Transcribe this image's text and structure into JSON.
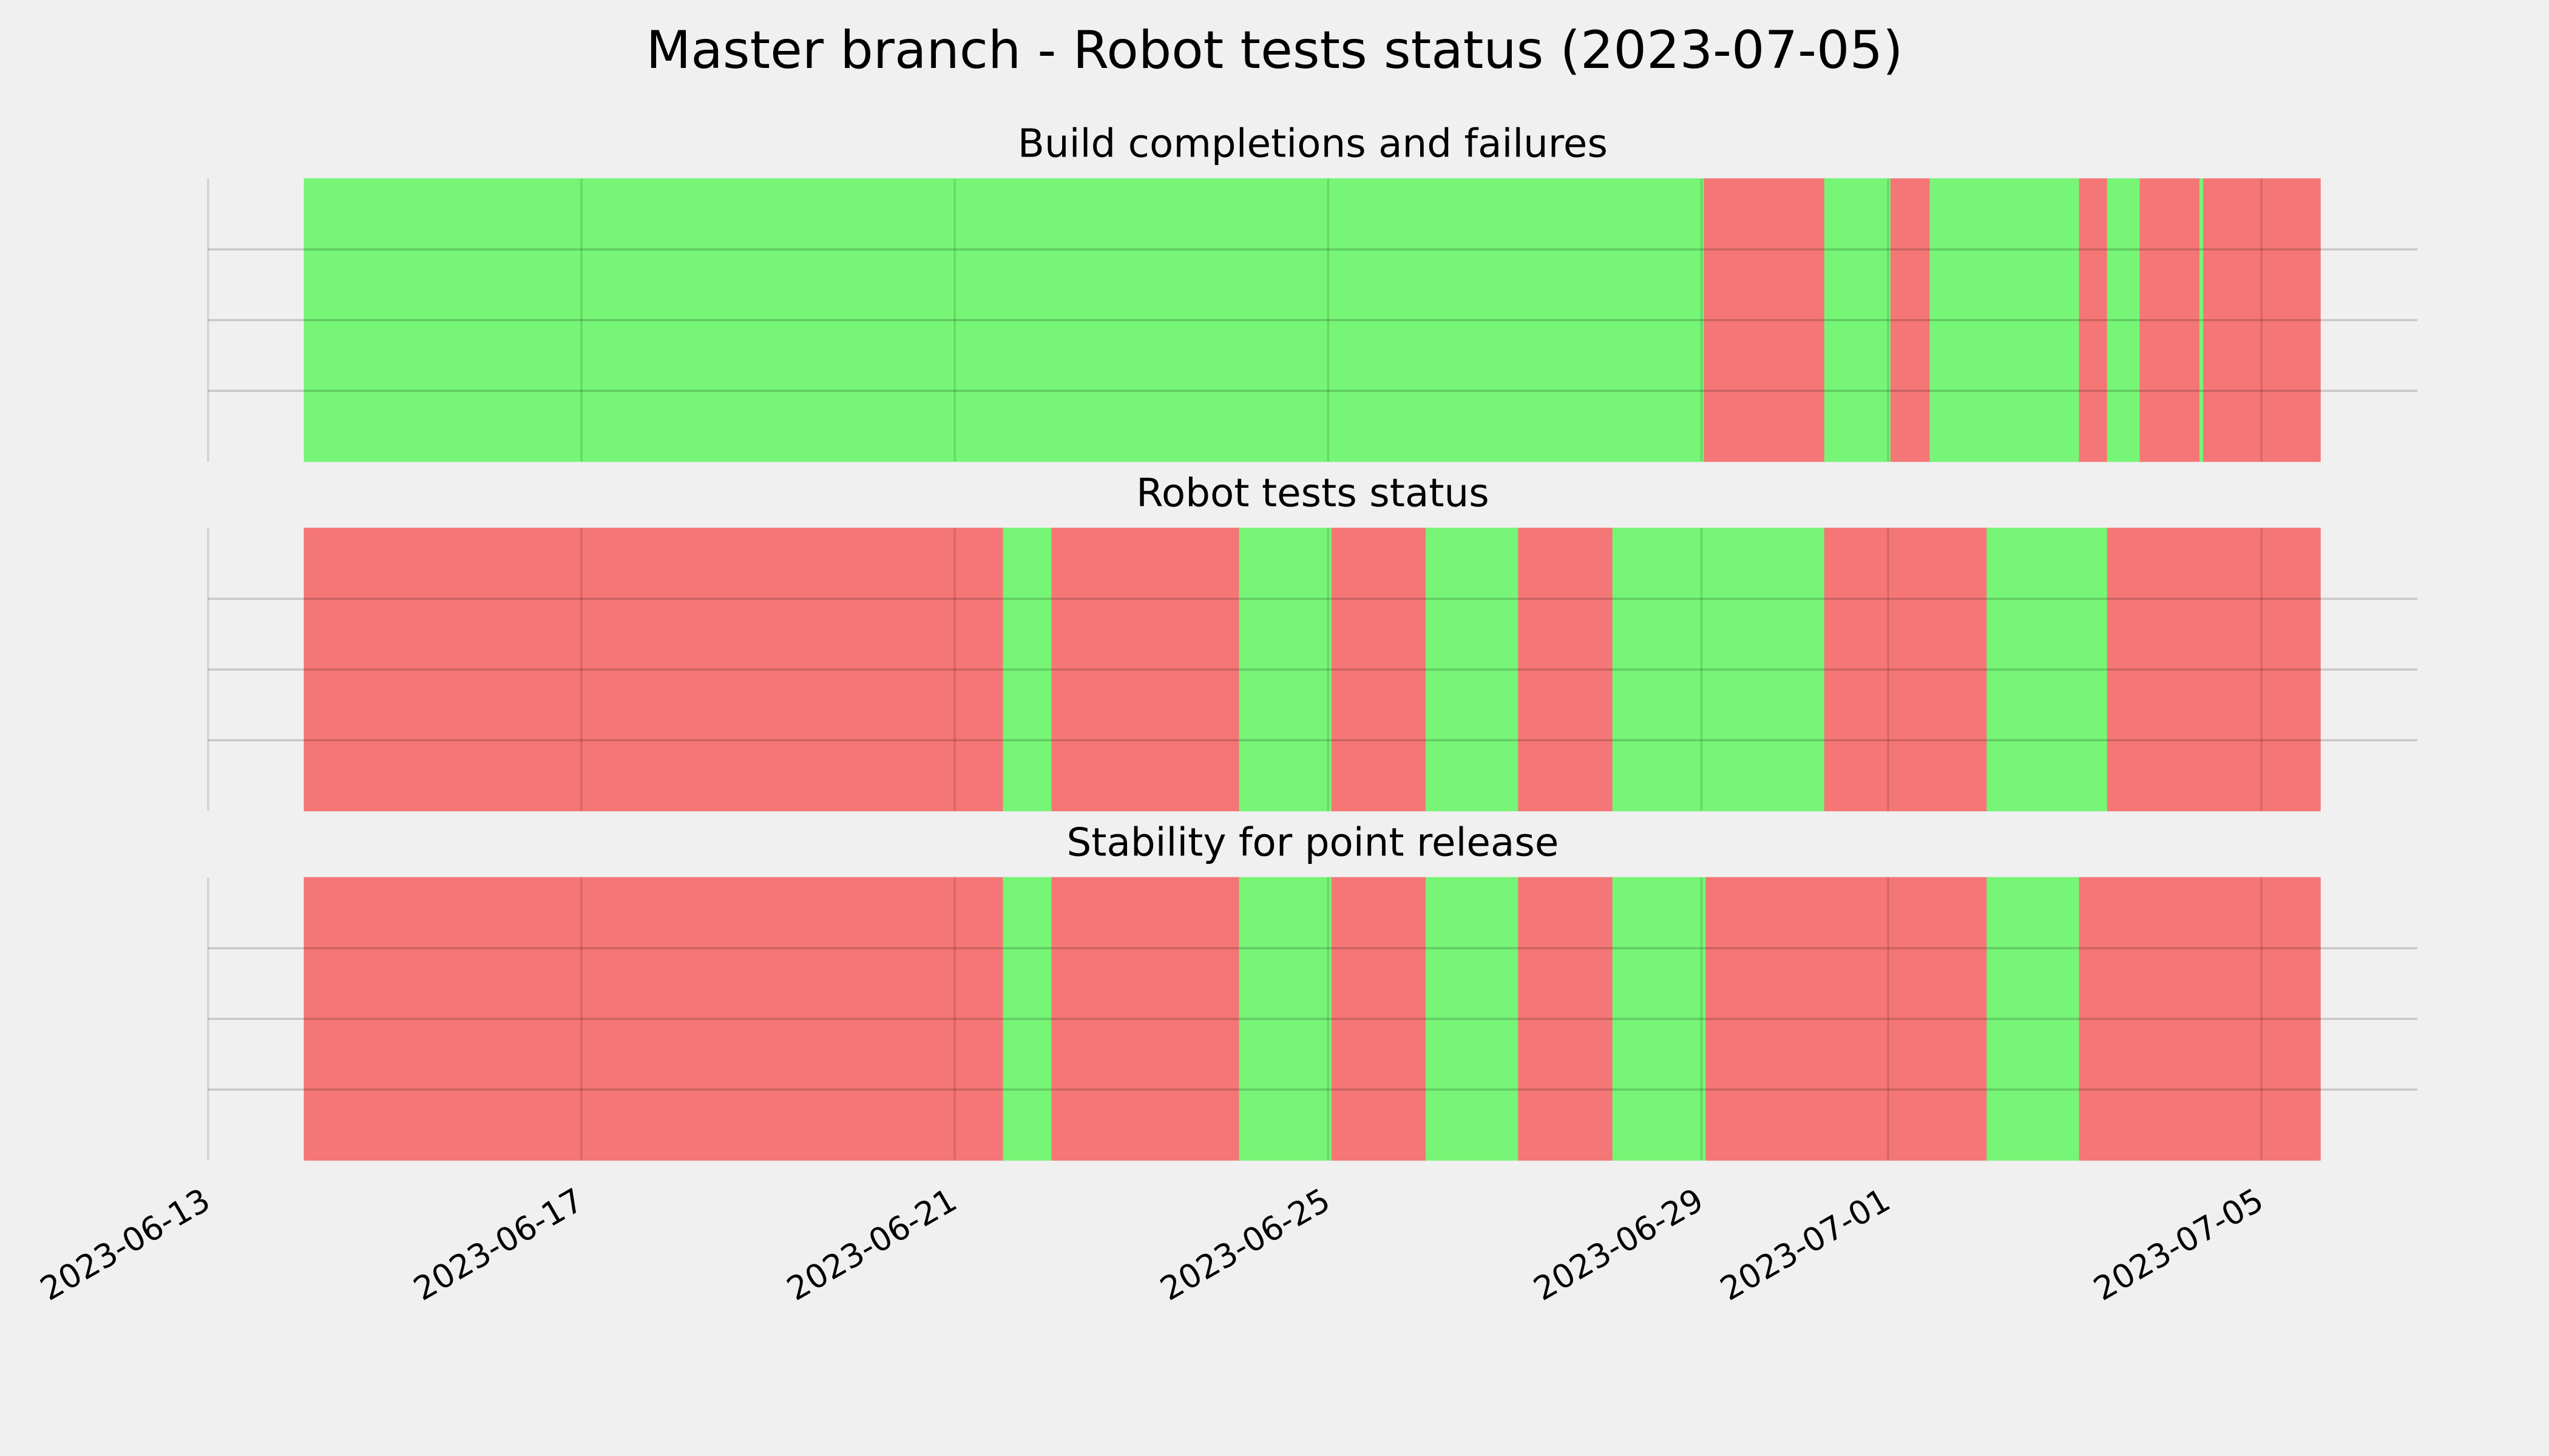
{
  "title": "Master branch - Robot tests status (2023-07-05)",
  "chart_data": [
    {
      "type": "span",
      "title": "Build completions and failures",
      "edges": [
        1.03,
        16.03,
        17.32,
        18.03,
        18.45,
        20.05,
        20.35,
        20.7,
        21.34,
        21.38,
        22.63
      ],
      "colors": [
        "#76f576",
        "#f57676",
        "#76f576",
        "#f57676",
        "#76f576",
        "#f57676",
        "#76f576",
        "#f57676",
        "#76f576",
        "#f57676"
      ],
      "xlim": [
        0,
        23.67
      ],
      "ylim": [
        0,
        1
      ],
      "yticks": [
        0.25,
        0.5,
        0.75
      ],
      "grid": true
    },
    {
      "type": "span",
      "title": "Robot tests status",
      "edges": [
        1.03,
        8.52,
        9.04,
        11.05,
        12.04,
        13.05,
        14.04,
        15.05,
        17.32,
        19.06,
        20.35,
        22.63
      ],
      "colors": [
        "#f57676",
        "#76f576",
        "#f57676",
        "#76f576",
        "#f57676",
        "#76f576",
        "#f57676",
        "#76f576",
        "#f57676",
        "#76f576",
        "#f57676"
      ],
      "xlim": [
        0,
        23.67
      ],
      "ylim": [
        0,
        1
      ],
      "yticks": [
        0.25,
        0.5,
        0.75
      ],
      "grid": true
    },
    {
      "type": "span",
      "title": "Stability for point release",
      "edges": [
        1.03,
        8.52,
        9.04,
        11.05,
        12.04,
        13.05,
        14.04,
        15.05,
        16.05,
        19.06,
        20.05,
        22.63
      ],
      "colors": [
        "#f57676",
        "#76f576",
        "#f57676",
        "#76f576",
        "#f57676",
        "#76f576",
        "#f57676",
        "#76f576",
        "#f57676",
        "#76f576",
        "#f57676"
      ],
      "xlim": [
        0,
        23.67
      ],
      "ylim": [
        0,
        1
      ],
      "yticks": [
        0.25,
        0.5,
        0.75
      ],
      "grid": true,
      "xticks": [
        {
          "value": 0,
          "label": "2023-06-13"
        },
        {
          "value": 4,
          "label": "2023-06-17"
        },
        {
          "value": 8,
          "label": "2023-06-21"
        },
        {
          "value": 12,
          "label": "2023-06-25"
        },
        {
          "value": 16,
          "label": "2023-06-29"
        },
        {
          "value": 18,
          "label": "2023-07-01"
        },
        {
          "value": 22,
          "label": "2023-07-05"
        }
      ]
    }
  ]
}
